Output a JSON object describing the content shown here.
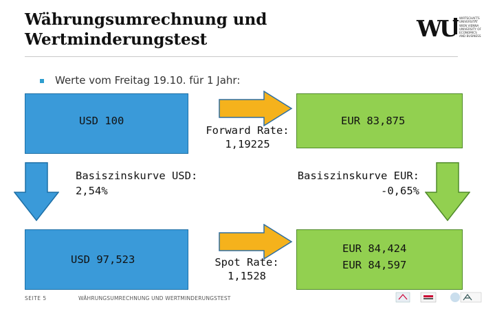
{
  "header": {
    "title_line1": "Währungsumrechnung und",
    "title_line2": "Wertminderungstest"
  },
  "logo": {
    "mark": "WU",
    "lines": [
      "WIRTSCHAFTS",
      "UNIVERSITÄT",
      "WIEN VIENNA",
      "UNIVERSITY OF",
      "ECONOMICS",
      "AND BUSINESS"
    ]
  },
  "intro": {
    "bullet_text": "Werte vom Freitag 19.10. für 1 Jahr:"
  },
  "boxes": {
    "usd_start": "USD 100",
    "eur_forward": "EUR 83,875",
    "usd_discounted": "USD 97,523",
    "eur_spot_line1": "EUR 84,424",
    "eur_spot_line2": "EUR 84,597"
  },
  "rates": {
    "forward_label": "Forward Rate:",
    "forward_value": "1,19225",
    "spot_label": "Spot Rate:",
    "spot_value": "1,1528"
  },
  "curves": {
    "usd_label": "Basiszinskurve USD:",
    "usd_value": "2,54%",
    "eur_label": "Basiszinskurve EUR:",
    "eur_value": "-0,65%"
  },
  "footer": {
    "page": "SEITE 5",
    "title": "WÄHRUNGSUMRECHNUNG UND WERTMINDERUNGSTEST"
  },
  "colors": {
    "blue_box": "#3a9ad9",
    "green_box": "#92d050",
    "orange_arrow": "#f5b21c",
    "accent_bullet": "#2e9ecf"
  }
}
